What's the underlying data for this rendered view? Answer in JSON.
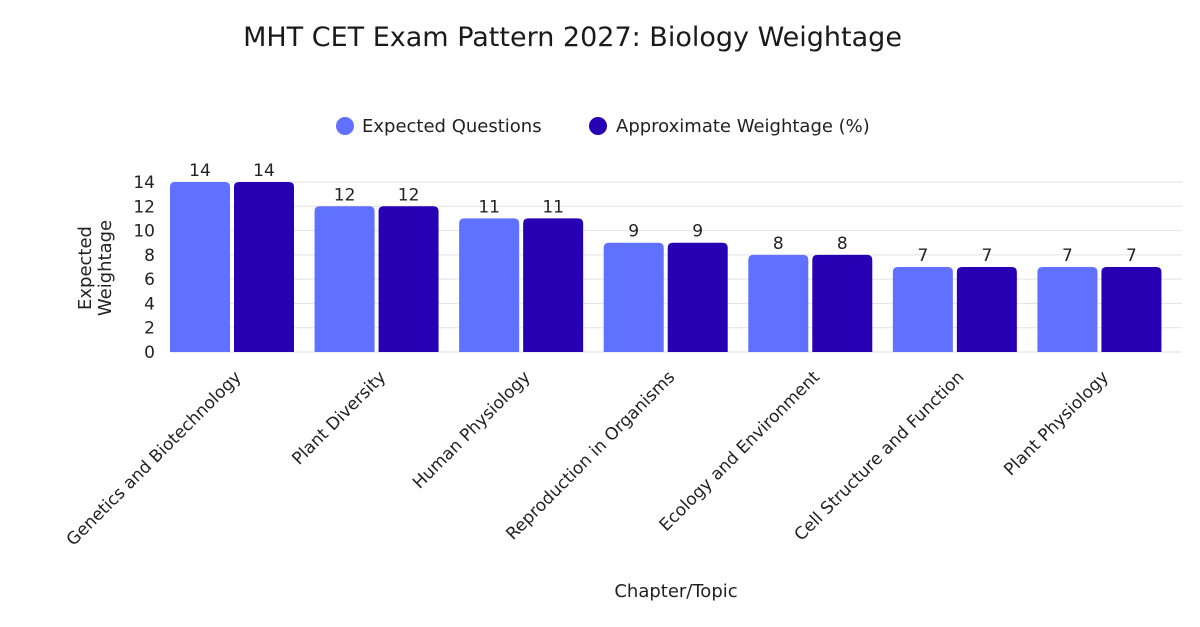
{
  "chart_data": {
    "type": "bar",
    "title": "MHT CET Exam Pattern 2027: Biology Weightage",
    "xlabel": "Chapter/Topic",
    "ylabel": "Expected Weightage",
    "ylim": [
      0,
      14
    ],
    "yticks": [
      0,
      2,
      4,
      6,
      8,
      10,
      12,
      14
    ],
    "grid": true,
    "legend_position": "top-center",
    "categories": [
      "Genetics and Biotechnology",
      "Plant Diversity",
      "Human Physiology",
      "Reproduction in Organisms",
      "Ecology and Environment",
      "Cell Structure and Function",
      "Plant Physiology"
    ],
    "series": [
      {
        "name": "Expected Questions",
        "color": "#6070ff",
        "values": [
          14,
          12,
          11,
          9,
          8,
          7,
          7
        ]
      },
      {
        "name": "Approximate Weightage (%)",
        "color": "#2700b4",
        "values": [
          14,
          12,
          11,
          9,
          8,
          7,
          7
        ]
      }
    ]
  }
}
